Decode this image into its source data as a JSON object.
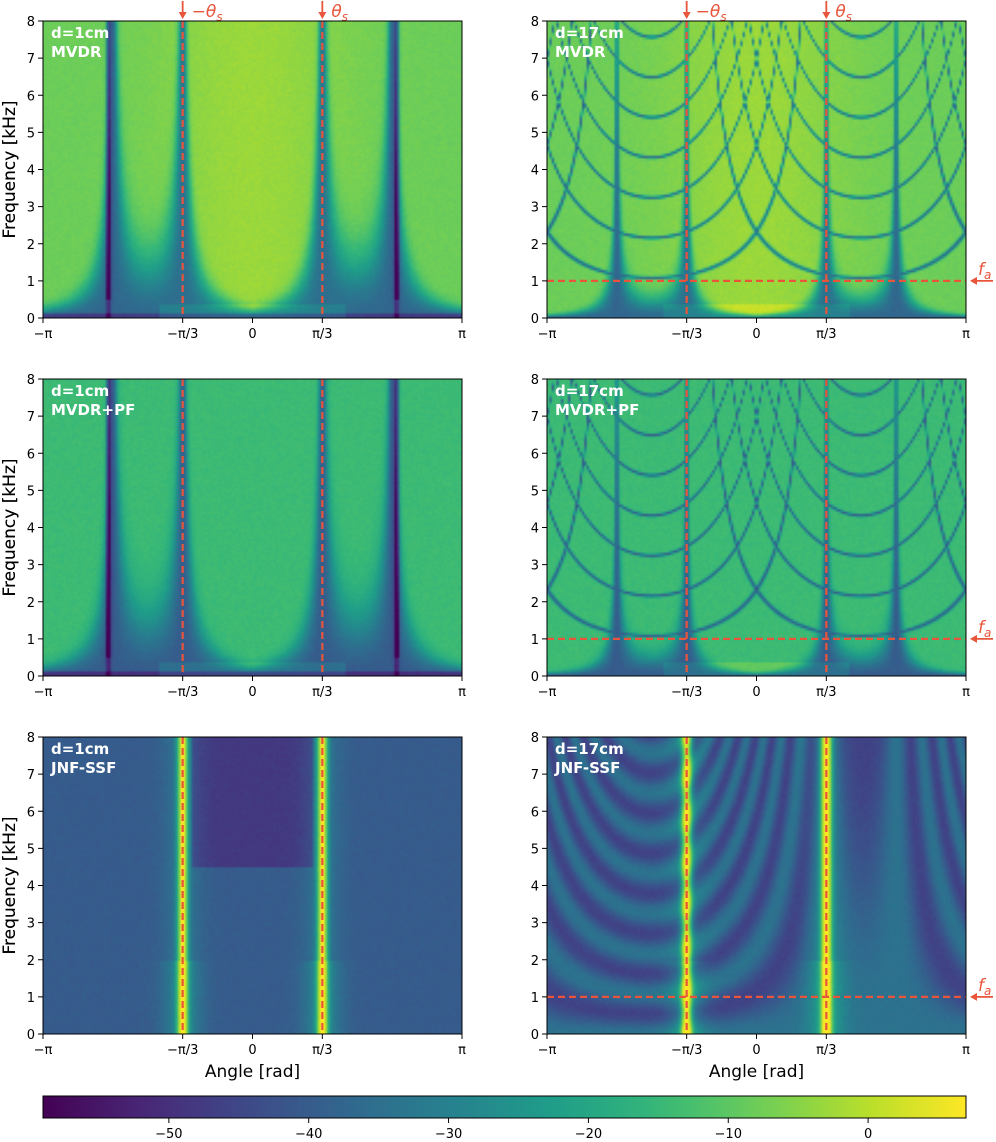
{
  "chart_data": {
    "type": "heatmap",
    "shared": {
      "xlabel": "Angle [rad]",
      "ylabel": "Frequency [kHz]",
      "xticks": [
        {
          "value": -3.1416,
          "label": "−π"
        },
        {
          "value": -1.0472,
          "label": "−π/3"
        },
        {
          "value": 0,
          "label": "0"
        },
        {
          "value": 1.0472,
          "label": "π/3"
        },
        {
          "value": 3.1416,
          "label": "π"
        }
      ],
      "yticks": [
        0,
        1,
        2,
        3,
        4,
        5,
        6,
        7,
        8
      ],
      "xlim": [
        -3.1416,
        3.1416
      ],
      "ylim": [
        0,
        8
      ],
      "source_angles": [
        -1.0472,
        1.0472
      ],
      "source_labels": [
        "−θ",
        "θ"
      ],
      "source_label_subscript": "s",
      "aliasing_frequency_khz": 1,
      "aliasing_label": "f",
      "aliasing_label_subscript": "a",
      "colormap": "viridis",
      "guide_color": "#e8553a"
    },
    "panels": [
      {
        "name": "d1-mvdr",
        "spacing": "d=1cm",
        "method": "MVDR",
        "spacing_cm": 1,
        "kind": "mvdr",
        "show_source_arrows": true,
        "show_fa": false,
        "show_xlabel": false
      },
      {
        "name": "d17-mvdr",
        "spacing": "d=17cm",
        "method": "MVDR",
        "spacing_cm": 17,
        "kind": "mvdr",
        "show_source_arrows": true,
        "show_fa": true,
        "show_xlabel": false
      },
      {
        "name": "d1-mvdr-pf",
        "spacing": "d=1cm",
        "method": "MVDR+PF",
        "spacing_cm": 1,
        "kind": "mvdr_pf",
        "show_source_arrows": false,
        "show_fa": false,
        "show_xlabel": false
      },
      {
        "name": "d17-mvdr-pf",
        "spacing": "d=17cm",
        "method": "MVDR+PF",
        "spacing_cm": 17,
        "kind": "mvdr_pf",
        "show_source_arrows": false,
        "show_fa": true,
        "show_xlabel": false
      },
      {
        "name": "d1-jnf-ssf",
        "spacing": "d=1cm",
        "method": "JNF-SSF",
        "spacing_cm": 1,
        "kind": "jnf",
        "show_source_arrows": false,
        "show_fa": false,
        "show_xlabel": true
      },
      {
        "name": "d17-jnf-ssf",
        "spacing": "d=17cm",
        "method": "JNF-SSF",
        "spacing_cm": 17,
        "kind": "jnf",
        "show_source_arrows": false,
        "show_fa": true,
        "show_xlabel": true
      }
    ],
    "colorbar": {
      "range_db": [
        -59,
        7
      ],
      "ticks": [
        -50,
        -40,
        -30,
        -20,
        -10,
        0
      ],
      "tick_labels": [
        "−50",
        "−40",
        "−30",
        "−20",
        "−10",
        "0"
      ]
    }
  }
}
